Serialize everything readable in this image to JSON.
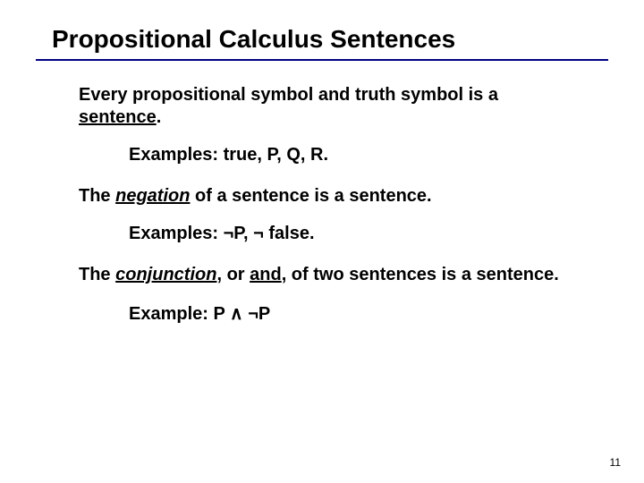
{
  "title": "Propositional Calculus Sentences",
  "rule_color": "#000080",
  "content": {
    "p1_a": "Every propositional symbol and truth symbol is a ",
    "p1_b": "sentence",
    "p1_c": ".",
    "ex1": "Examples: true, P, Q, R.",
    "p2_a": "The ",
    "p2_b": "negation",
    "p2_c": " of a sentence is a sentence.",
    "ex2": "Examples: ¬P, ¬ false.",
    "p3_a": "The ",
    "p3_b": "conjunction",
    "p3_c": ", or ",
    "p3_d": "and",
    "p3_e": ", of two sentences is a sentence.",
    "ex3": "Example: P ∧ ¬P"
  },
  "page_number": "11",
  "font_sizes": {
    "title": 28,
    "body": 20,
    "pagenum": 12
  },
  "colors": {
    "text": "#000000",
    "background": "#ffffff",
    "rule": "#000080"
  }
}
